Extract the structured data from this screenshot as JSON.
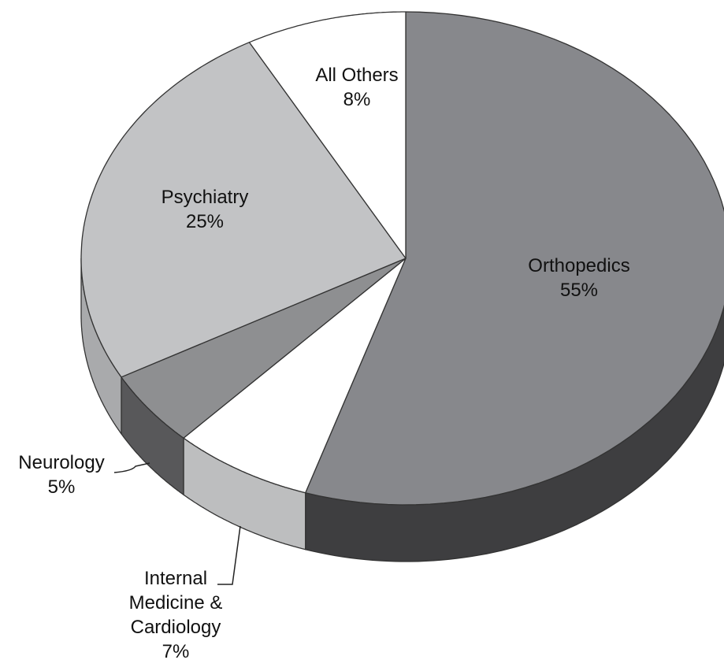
{
  "chart_data": {
    "type": "pie",
    "categories": [
      "Orthopedics",
      "Internal Medicine & Cardiology",
      "Neurology",
      "Psychiatry",
      "All Others"
    ],
    "values": [
      55,
      7,
      5,
      25,
      8
    ],
    "value_labels": [
      "55%",
      "7%",
      "5%",
      "25%",
      "8%"
    ],
    "colors": [
      "#87888c",
      "#ffffff",
      "#8e8f91",
      "#c2c3c5",
      "#ffffff"
    ],
    "side_colors": [
      "#3e3e40",
      "#bdbebf",
      "#58585a",
      "#a9aaac",
      "#bdbebf"
    ]
  }
}
